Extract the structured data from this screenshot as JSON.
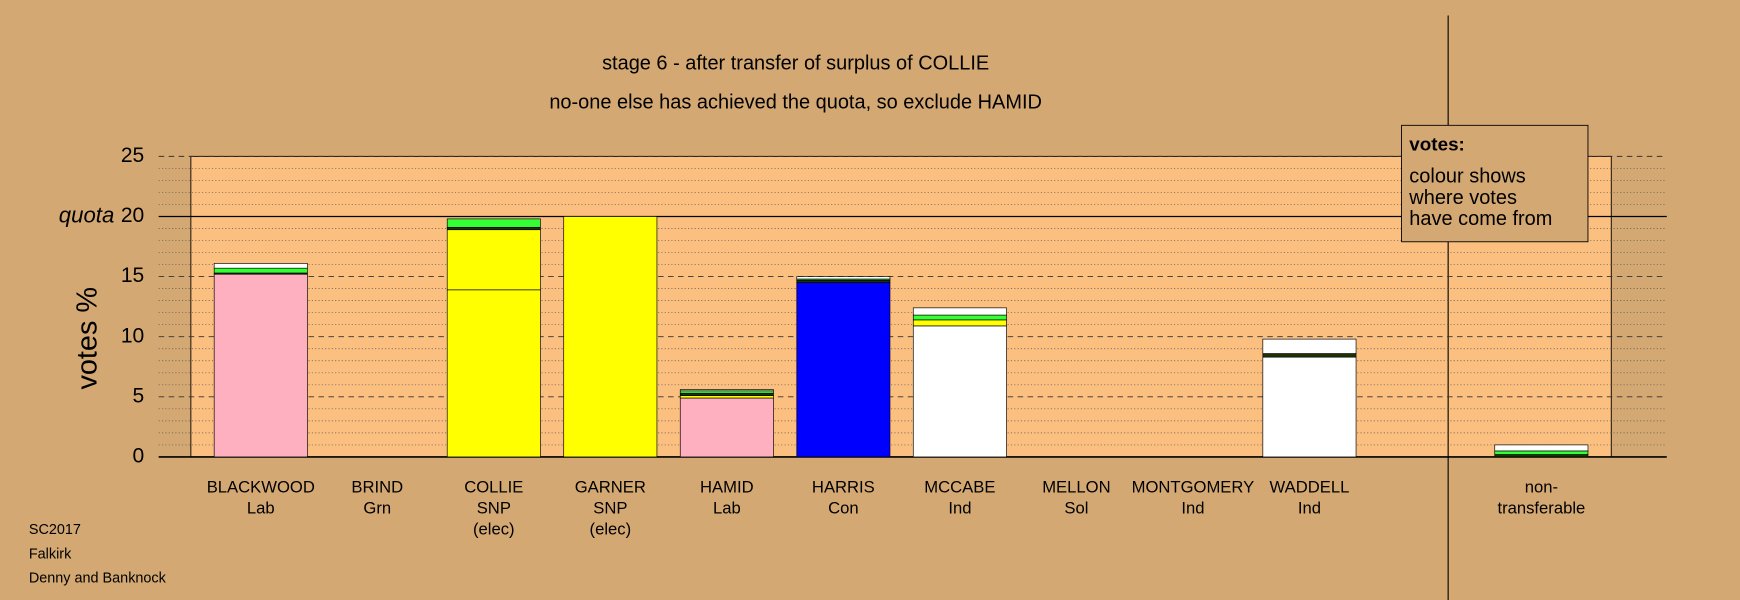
{
  "chart_data": {
    "type": "stacked_bar",
    "title": "stage 6 - after transfer of surplus of COLLIE",
    "subtitle": "no-one else has achieved the quota, so exclude HAMID",
    "y_label": "votes %",
    "categories": [
      [
        "BLACKWOOD",
        "Lab"
      ],
      [
        "BRIND",
        "Grn"
      ],
      [
        "COLLIE",
        "SNP",
        "(elec)"
      ],
      [
        "GARNER",
        "SNP",
        "(elec)"
      ],
      [
        "HAMID",
        "Lab"
      ],
      [
        "HARRIS",
        "Con"
      ],
      [
        "MCCABE",
        "Ind"
      ],
      [
        "MELLON",
        "Sol"
      ],
      [
        "MONTGOMERY",
        "Ind"
      ],
      [
        "WADDELL",
        "Ind"
      ],
      [
        "non-",
        "transferable"
      ]
    ],
    "series": [
      {
        "color": "#ffb0c0",
        "values": [
          15.2,
          null,
          null,
          null,
          4.9,
          null,
          null,
          null,
          null,
          null,
          null
        ]
      },
      {
        "color": "#ffff00",
        "values": [
          null,
          null,
          13.9,
          20,
          null,
          null,
          null,
          null,
          null,
          null,
          null
        ]
      },
      {
        "color": "#0000ff",
        "values": [
          null,
          null,
          null,
          null,
          null,
          14.5,
          null,
          null,
          null,
          null,
          null
        ]
      },
      {
        "color": "#ffffff",
        "values": [
          null,
          null,
          null,
          null,
          null,
          null,
          10.9,
          null,
          null,
          8.3,
          null
        ]
      },
      {
        "color": "#ffff00",
        "values": [
          null,
          null,
          5.0,
          null,
          0.2,
          null,
          0.5,
          null,
          null,
          null,
          null
        ]
      },
      {
        "color": "#1a3300",
        "values": [
          0.1,
          null,
          0.2,
          null,
          0.2,
          0.2,
          null,
          null,
          null,
          0.3,
          0.2
        ]
      },
      {
        "color": "#33ff33",
        "values": [
          0.4,
          null,
          0.7,
          null,
          0.2,
          0.1,
          0.4,
          null,
          null,
          null,
          0.3
        ]
      },
      {
        "color": "#ffffff",
        "values": [
          0.4,
          null,
          null,
          null,
          0.1,
          0.2,
          0.6,
          null,
          null,
          1.2,
          0.5
        ]
      }
    ],
    "ylim": [
      0,
      25
    ],
    "yticks": [
      0,
      5,
      10,
      15,
      20,
      25
    ],
    "grid": true,
    "quota": 20,
    "quota_label": "quota",
    "legend_box": [
      "votes:",
      "colour shows",
      "where votes",
      "have come from"
    ],
    "footer": [
      "SC2017",
      "Falkirk",
      "Denny and Banknock"
    ]
  }
}
